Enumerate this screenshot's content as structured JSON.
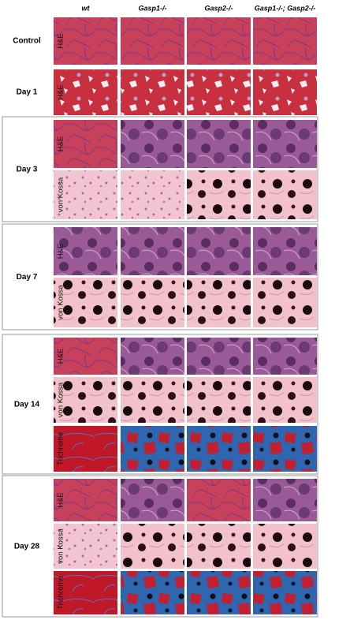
{
  "columns": [
    "wt",
    "Gasp1-/-",
    "Gasp2-/-",
    "Gasp1-/-; Gasp2-/-"
  ],
  "groups": [
    {
      "label": "Control",
      "stains": [
        "H&E"
      ]
    },
    {
      "label": "Day 1",
      "stains": [
        "H&E"
      ]
    },
    {
      "label": "Day 3",
      "stains": [
        "H&E",
        "von Kossa"
      ]
    },
    {
      "label": "Day 7",
      "stains": [
        "H&E",
        "von Kossa"
      ]
    },
    {
      "label": "Day 14",
      "stains": [
        "H&E",
        "von Kossa",
        "Trichrome"
      ]
    },
    {
      "label": "Day 28",
      "stains": [
        "H&E",
        "von Kossa",
        "Trichrome"
      ]
    }
  ]
}
